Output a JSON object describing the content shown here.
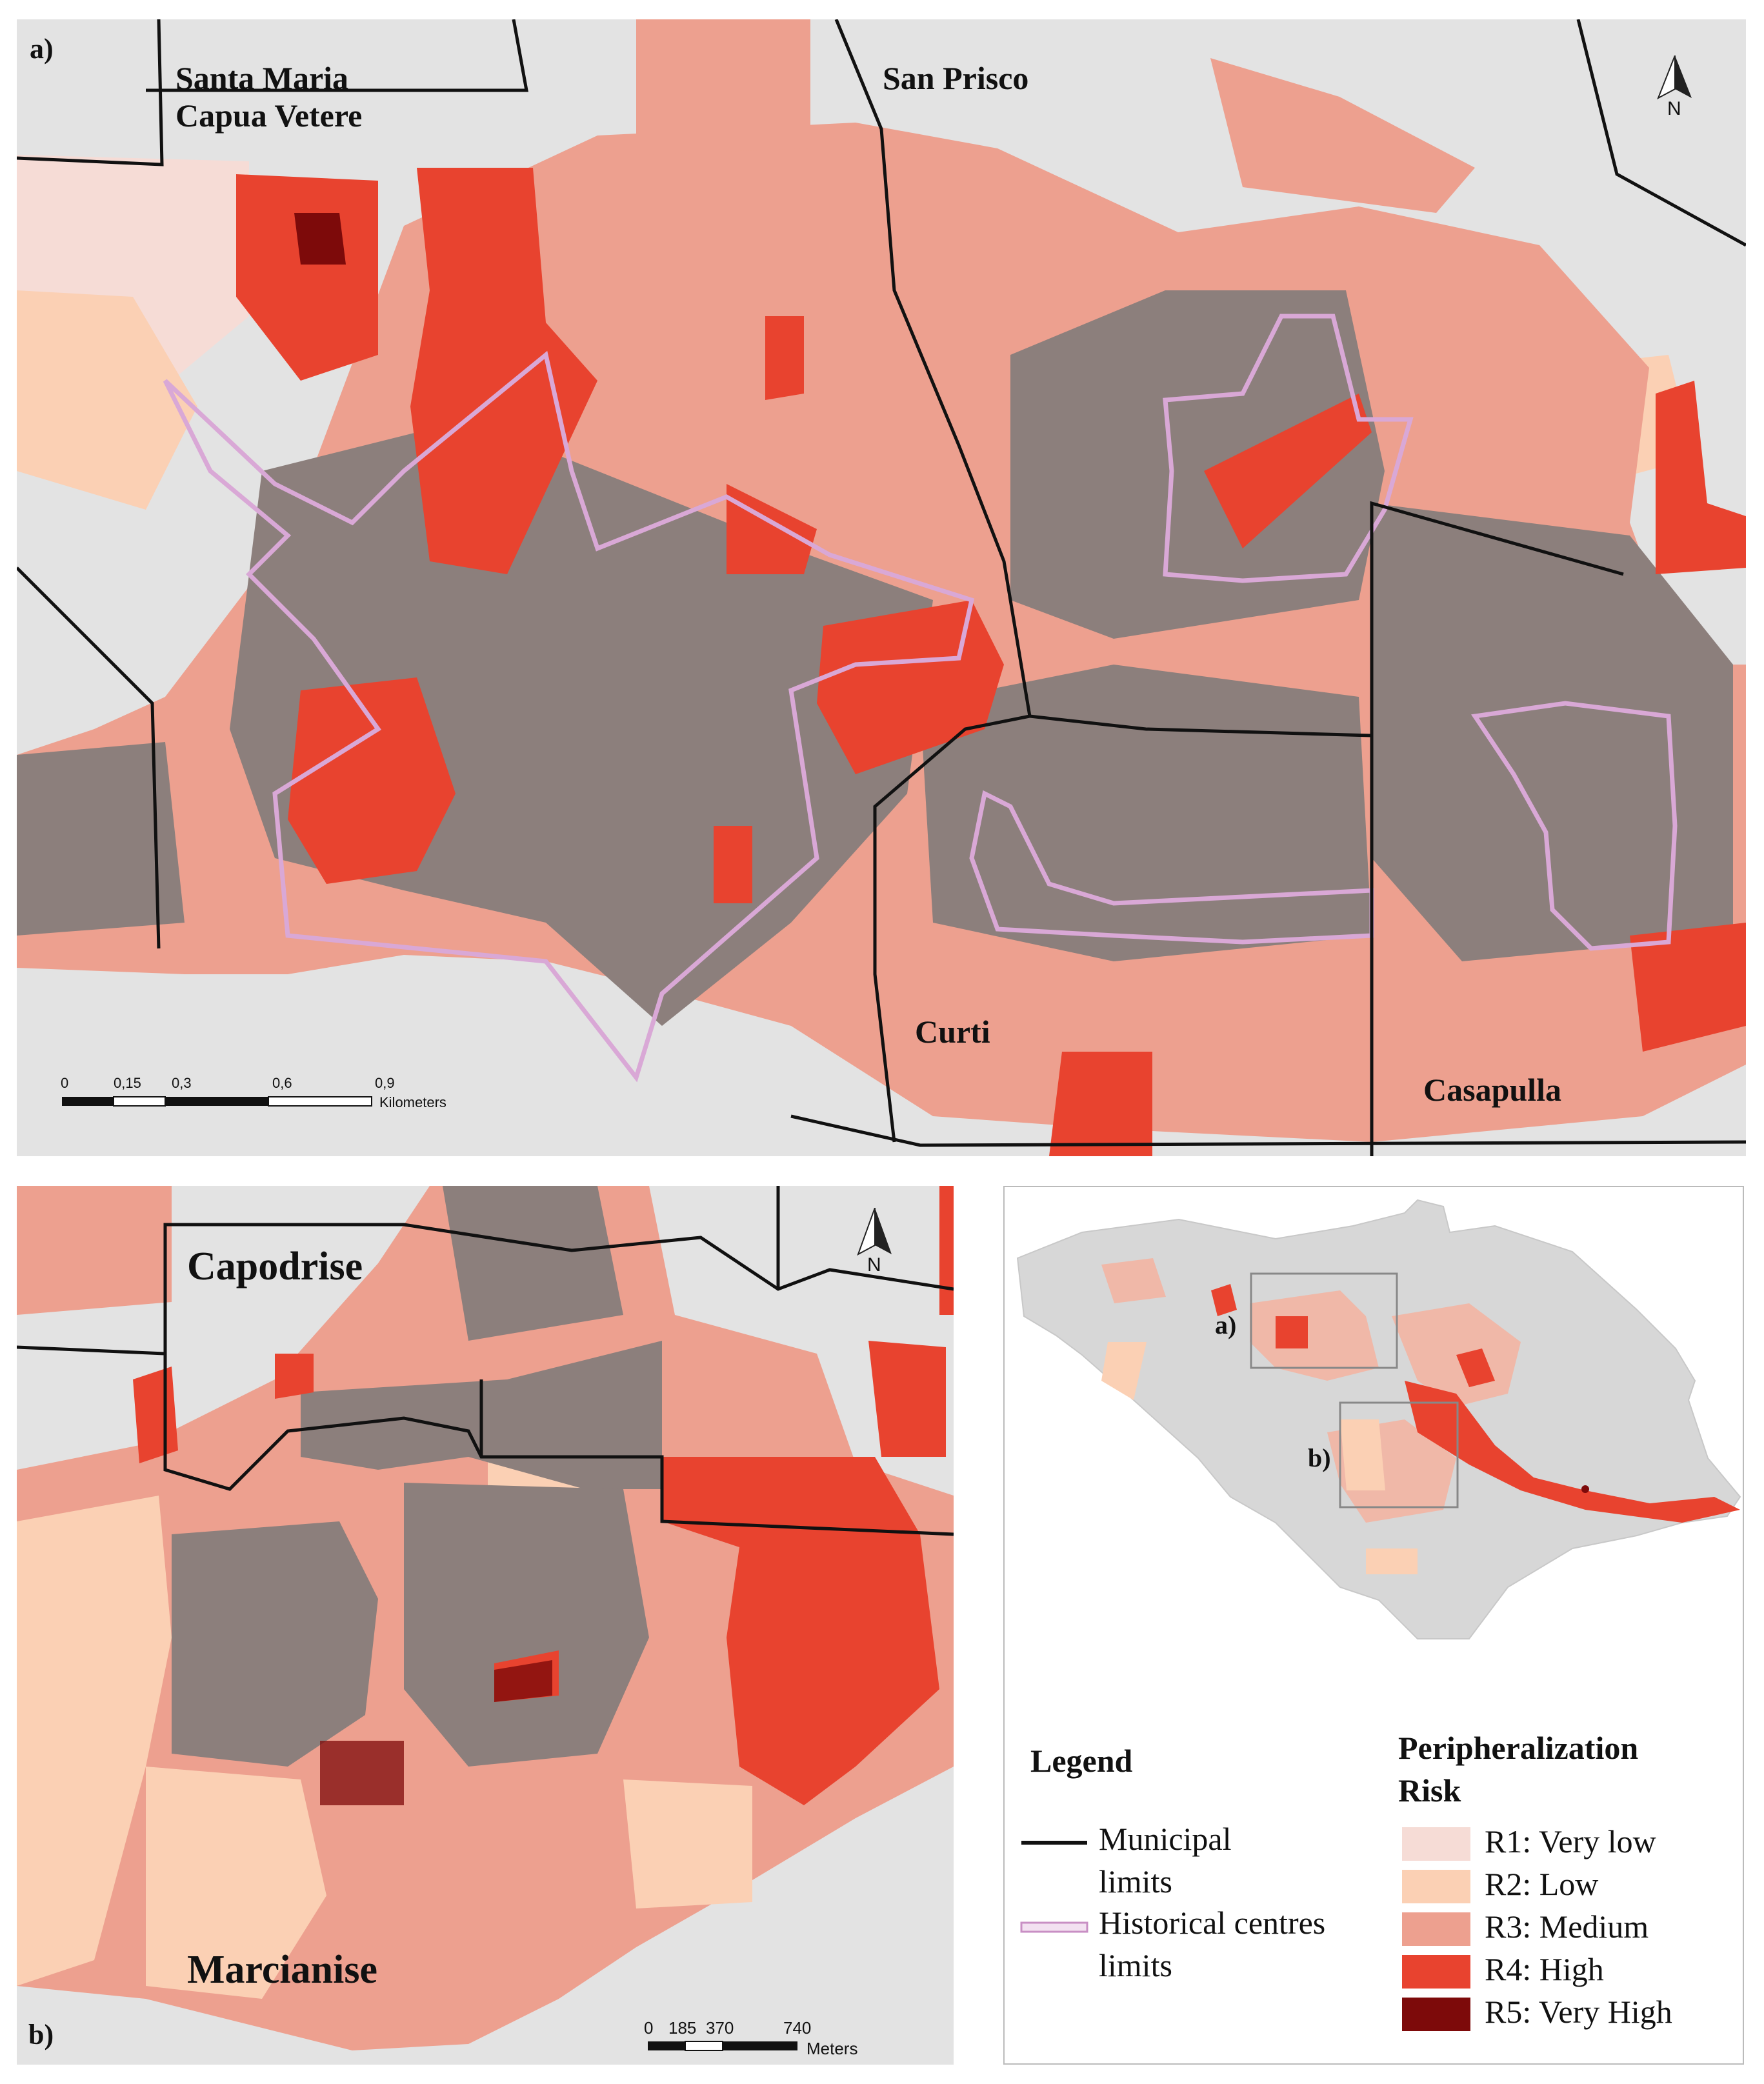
{
  "panel_a": {
    "letter": "a)",
    "places": [
      "Santa Maria",
      "Capua Vetere",
      "San Prisco",
      "Curti",
      "Casapulla"
    ],
    "north_label": "N",
    "scale": {
      "ticks": [
        "0",
        "0,15",
        "0,3",
        "0,6",
        "0,9"
      ],
      "unit": "Kilometers"
    }
  },
  "panel_b": {
    "letter": "b)",
    "places": [
      "Capodrise",
      "Marcianise"
    ],
    "north_label": "N",
    "scale": {
      "ticks": [
        "0",
        "185",
        "370",
        "740"
      ],
      "unit": "Meters"
    }
  },
  "overview": {
    "inset_a": "a)",
    "inset_b": "b)"
  },
  "legend": {
    "title": "Legend",
    "line_items": [
      {
        "label": "Municipal limits",
        "line1": "Municipal",
        "line2": "limits",
        "color": "#111111"
      },
      {
        "label": "Historical centres limits",
        "line1": "Historical centres",
        "line2": "limits",
        "color": "#d9a8d6"
      }
    ],
    "risk_title_1": "Peripheralization",
    "risk_title_2": "Risk",
    "risk_classes": [
      {
        "label": "R1: Very low",
        "color": "#f6dcd6"
      },
      {
        "label": "R2: Low",
        "color": "#fbd0b4"
      },
      {
        "label": "R3: Medium",
        "color": "#eda08f"
      },
      {
        "label": "R4: High",
        "color": "#e8432f"
      },
      {
        "label": "R5: Very High",
        "color": "#7d0a0a"
      }
    ]
  },
  "colors": {
    "background": "#e3e3e3",
    "buildings": "#8c7f7c",
    "municipal_limits": "#111111",
    "historical_centres": "#d9a8d6"
  }
}
